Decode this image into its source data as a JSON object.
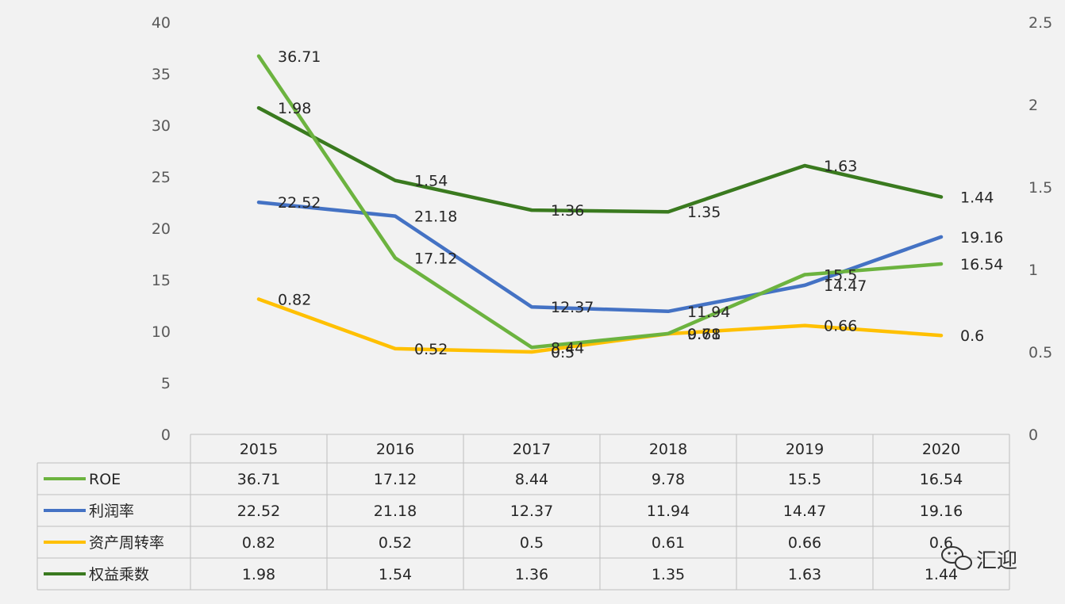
{
  "chart_data": {
    "type": "line",
    "categories": [
      "2015",
      "2016",
      "2017",
      "2018",
      "2019",
      "2020"
    ],
    "y_left": {
      "ticks": [
        "0",
        "5",
        "10",
        "15",
        "20",
        "25",
        "30",
        "35",
        "40"
      ],
      "range": [
        0,
        40
      ]
    },
    "y_right": {
      "ticks": [
        "0",
        "0.5",
        "1",
        "1.5",
        "2",
        "2.5"
      ],
      "range": [
        0,
        2.5
      ]
    },
    "series": [
      {
        "name": "ROE",
        "axis": "left",
        "color": "#6cb33f",
        "values": [
          36.71,
          17.12,
          8.44,
          9.78,
          15.5,
          16.54
        ],
        "labels": [
          "36.71",
          "17.12",
          "8.44",
          "9.78",
          "15.5",
          "16.54"
        ]
      },
      {
        "name": "利润率",
        "axis": "left",
        "color": "#4472c4",
        "values": [
          22.52,
          21.18,
          12.37,
          11.94,
          14.47,
          19.16
        ],
        "labels": [
          "22.52",
          "21.18",
          "12.37",
          "11.94",
          "14.47",
          "19.16"
        ]
      },
      {
        "name": "资产周转率",
        "axis": "right",
        "color": "#ffc000",
        "values": [
          0.82,
          0.52,
          0.5,
          0.61,
          0.66,
          0.6
        ],
        "labels": [
          "0.82",
          "0.52",
          "0.5",
          "0.61",
          "0.66",
          "0.6"
        ]
      },
      {
        "name": "权益乘数",
        "axis": "right",
        "color": "#3a7a1f",
        "values": [
          1.98,
          1.54,
          1.36,
          1.35,
          1.63,
          1.44
        ],
        "labels": [
          "1.98",
          "1.54",
          "1.36",
          "1.35",
          "1.63",
          "1.44"
        ]
      }
    ],
    "data_table": true,
    "grid": false
  },
  "watermark": {
    "text": "汇迎",
    "icon": "wechat-icon"
  }
}
